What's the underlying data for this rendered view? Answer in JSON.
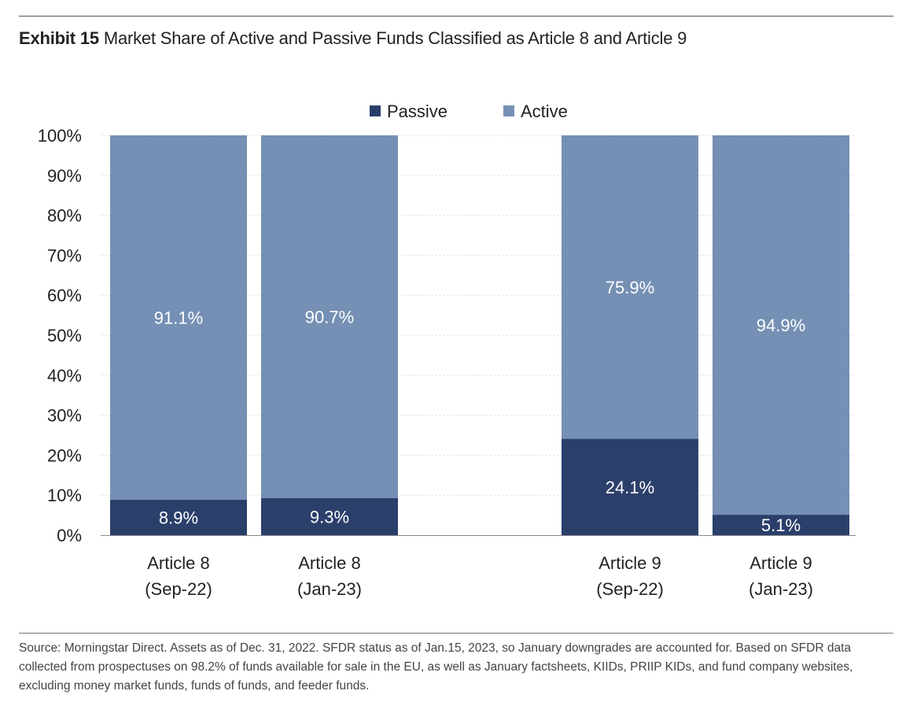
{
  "title": {
    "label": "Exhibit 15",
    "text": "Market Share of Active and Passive Funds Classified as Article 8 and Article 9"
  },
  "chart_data": {
    "type": "bar",
    "stacked": true,
    "categories": [
      [
        "Article 8",
        "(Sep-22)"
      ],
      [
        "Article 8",
        "(Jan-23)"
      ],
      [
        "Article 9",
        "(Sep-22)"
      ],
      [
        "Article 9",
        "(Jan-23)"
      ]
    ],
    "category_gap_after_index": 1,
    "series": [
      {
        "name": "Passive",
        "values": [
          8.9,
          9.3,
          24.1,
          5.1
        ],
        "labels": [
          "8.9%",
          "9.3%",
          "24.1%",
          "5.1%"
        ],
        "color": "#2b3f6b"
      },
      {
        "name": "Active",
        "values": [
          91.1,
          90.7,
          75.9,
          94.9
        ],
        "labels": [
          "91.1%",
          "90.7%",
          "75.9%",
          "94.9%"
        ],
        "color": "#7590b4"
      }
    ],
    "ylim": [
      0,
      100
    ],
    "yticks": [
      "0%",
      "10%",
      "20%",
      "30%",
      "40%",
      "50%",
      "60%",
      "70%",
      "80%",
      "90%",
      "100%"
    ],
    "grid": true,
    "legend": "top-center",
    "xlabel": "",
    "ylabel": ""
  },
  "source": "Source: Morningstar Direct. Assets as of Dec. 31, 2022. SFDR status as of Jan.15, 2023, so January downgrades are accounted for. Based on SFDR data collected from prospectuses on 98.2% of funds available for sale in the EU, as well as January factsheets, KIIDs, PRIIP KIDs, and fund company websites, excluding money market funds, funds of funds, and feeder funds."
}
